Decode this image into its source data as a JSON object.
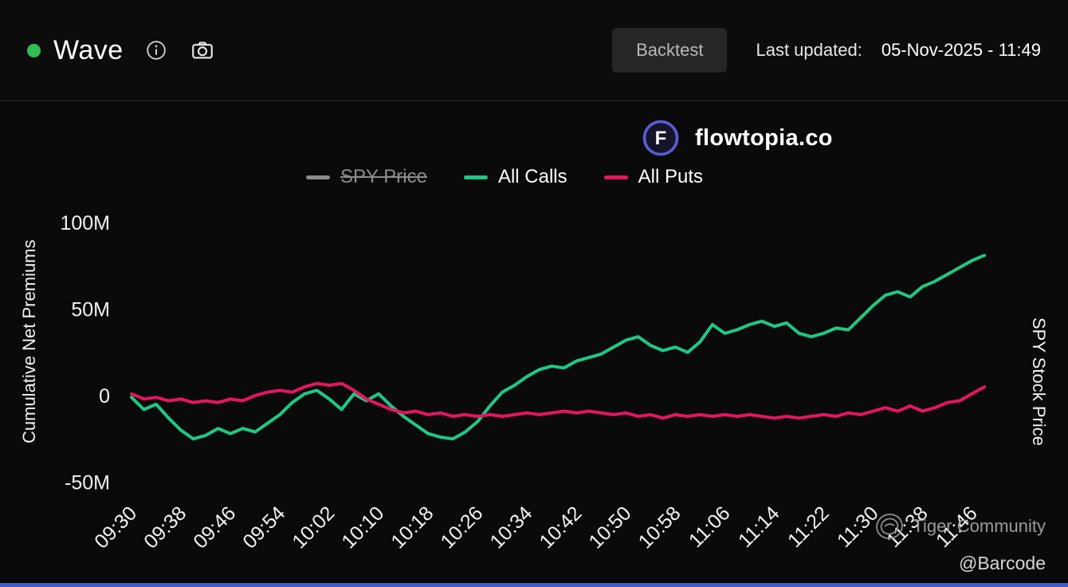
{
  "header": {
    "title": "Wave",
    "backtest_label": "Backtest",
    "last_updated_label": "Last updated:",
    "last_updated_value": "05-Nov-2025 - 11:49"
  },
  "branding": {
    "logo_letter": "F",
    "logo_text": "flowtopia.co"
  },
  "watermark": {
    "community": "Tiger Community",
    "handle": "@Barcode"
  },
  "ui_colors": {
    "status_dot": "#2fbe54",
    "background": "#0a0a0a",
    "header_bg": "#0c0c0c",
    "bottom_bar": "#3e5fcb",
    "logo_ring": "#5b5bd6",
    "tick_text": "#f2f2f2"
  },
  "chart_data": {
    "type": "line",
    "ylabel_left": "Cumulative Net Premiums",
    "ylabel_right": "SPY Stock Price",
    "ylim": [
      -65,
      115
    ],
    "x_domain_minutes": [
      0,
      138
    ],
    "x_start_time": "09:30",
    "grid": false,
    "legend_position": "top-center",
    "y_ticks": [
      {
        "label": "100M",
        "value": 100
      },
      {
        "label": "50M",
        "value": 50
      },
      {
        "label": "0",
        "value": 0
      },
      {
        "label": "-50M",
        "value": -50
      }
    ],
    "x_ticks": [
      {
        "label": "09:30",
        "minute": 0
      },
      {
        "label": "09:38",
        "minute": 8
      },
      {
        "label": "09:46",
        "minute": 16
      },
      {
        "label": "09:54",
        "minute": 24
      },
      {
        "label": "10:02",
        "minute": 32
      },
      {
        "label": "10:10",
        "minute": 40
      },
      {
        "label": "10:18",
        "minute": 48
      },
      {
        "label": "10:26",
        "minute": 56
      },
      {
        "label": "10:34",
        "minute": 64
      },
      {
        "label": "10:42",
        "minute": 72
      },
      {
        "label": "10:50",
        "minute": 80
      },
      {
        "label": "10:58",
        "minute": 88
      },
      {
        "label": "11:06",
        "minute": 96
      },
      {
        "label": "11:14",
        "minute": 104
      },
      {
        "label": "11:22",
        "minute": 112
      },
      {
        "label": "11:30",
        "minute": 120
      },
      {
        "label": "11:38",
        "minute": 128
      },
      {
        "label": "11:46",
        "minute": 136
      }
    ],
    "legend": [
      {
        "label": "SPY Price",
        "color": "#8c8c8c",
        "disabled": true
      },
      {
        "label": "All Calls",
        "color": "#1ec887",
        "disabled": false
      },
      {
        "label": "All Puts",
        "color": "#e61560",
        "disabled": false
      }
    ],
    "series": [
      {
        "name": "All Calls",
        "color": "#1ec887",
        "unit": "M",
        "points": [
          [
            0,
            -1
          ],
          [
            2,
            -8
          ],
          [
            4,
            -5
          ],
          [
            6,
            -13
          ],
          [
            8,
            -20
          ],
          [
            10,
            -25
          ],
          [
            12,
            -23
          ],
          [
            14,
            -19
          ],
          [
            16,
            -22
          ],
          [
            18,
            -19
          ],
          [
            20,
            -21
          ],
          [
            22,
            -16
          ],
          [
            24,
            -11
          ],
          [
            26,
            -4
          ],
          [
            28,
            1
          ],
          [
            30,
            3
          ],
          [
            32,
            -2
          ],
          [
            34,
            -8
          ],
          [
            36,
            1
          ],
          [
            38,
            -3
          ],
          [
            40,
            1
          ],
          [
            42,
            -6
          ],
          [
            44,
            -12
          ],
          [
            46,
            -17
          ],
          [
            48,
            -22
          ],
          [
            50,
            -24
          ],
          [
            52,
            -25
          ],
          [
            54,
            -21
          ],
          [
            56,
            -15
          ],
          [
            58,
            -6
          ],
          [
            60,
            2
          ],
          [
            62,
            6
          ],
          [
            64,
            11
          ],
          [
            66,
            15
          ],
          [
            68,
            17
          ],
          [
            70,
            16
          ],
          [
            72,
            20
          ],
          [
            74,
            22
          ],
          [
            76,
            24
          ],
          [
            78,
            28
          ],
          [
            80,
            32
          ],
          [
            82,
            34
          ],
          [
            84,
            29
          ],
          [
            86,
            26
          ],
          [
            88,
            28
          ],
          [
            90,
            25
          ],
          [
            92,
            31
          ],
          [
            94,
            41
          ],
          [
            96,
            36
          ],
          [
            98,
            38
          ],
          [
            100,
            41
          ],
          [
            102,
            43
          ],
          [
            104,
            40
          ],
          [
            106,
            42
          ],
          [
            108,
            36
          ],
          [
            110,
            34
          ],
          [
            112,
            36
          ],
          [
            114,
            39
          ],
          [
            116,
            38
          ],
          [
            118,
            45
          ],
          [
            120,
            52
          ],
          [
            122,
            58
          ],
          [
            124,
            60
          ],
          [
            126,
            57
          ],
          [
            128,
            63
          ],
          [
            130,
            66
          ],
          [
            132,
            70
          ],
          [
            134,
            74
          ],
          [
            136,
            78
          ],
          [
            138,
            81
          ]
        ]
      },
      {
        "name": "All Puts",
        "color": "#e61560",
        "unit": "M",
        "points": [
          [
            0,
            1
          ],
          [
            2,
            -2
          ],
          [
            4,
            -1
          ],
          [
            6,
            -3
          ],
          [
            8,
            -2
          ],
          [
            10,
            -4
          ],
          [
            12,
            -3
          ],
          [
            14,
            -4
          ],
          [
            16,
            -2
          ],
          [
            18,
            -3
          ],
          [
            20,
            0
          ],
          [
            22,
            2
          ],
          [
            24,
            3
          ],
          [
            26,
            2
          ],
          [
            28,
            5
          ],
          [
            30,
            7
          ],
          [
            32,
            6
          ],
          [
            34,
            7
          ],
          [
            36,
            3
          ],
          [
            38,
            -2
          ],
          [
            40,
            -5
          ],
          [
            42,
            -8
          ],
          [
            44,
            -10
          ],
          [
            46,
            -9
          ],
          [
            48,
            -11
          ],
          [
            50,
            -10
          ],
          [
            52,
            -12
          ],
          [
            54,
            -11
          ],
          [
            56,
            -12
          ],
          [
            58,
            -11
          ],
          [
            60,
            -12
          ],
          [
            62,
            -11
          ],
          [
            64,
            -10
          ],
          [
            66,
            -11
          ],
          [
            68,
            -10
          ],
          [
            70,
            -9
          ],
          [
            72,
            -10
          ],
          [
            74,
            -9
          ],
          [
            76,
            -10
          ],
          [
            78,
            -11
          ],
          [
            80,
            -10
          ],
          [
            82,
            -12
          ],
          [
            84,
            -11
          ],
          [
            86,
            -13
          ],
          [
            88,
            -11
          ],
          [
            90,
            -12
          ],
          [
            92,
            -11
          ],
          [
            94,
            -12
          ],
          [
            96,
            -11
          ],
          [
            98,
            -12
          ],
          [
            100,
            -11
          ],
          [
            102,
            -12
          ],
          [
            104,
            -13
          ],
          [
            106,
            -12
          ],
          [
            108,
            -13
          ],
          [
            110,
            -12
          ],
          [
            112,
            -11
          ],
          [
            114,
            -12
          ],
          [
            116,
            -10
          ],
          [
            118,
            -11
          ],
          [
            120,
            -9
          ],
          [
            122,
            -7
          ],
          [
            124,
            -9
          ],
          [
            126,
            -6
          ],
          [
            128,
            -9
          ],
          [
            130,
            -7
          ],
          [
            132,
            -4
          ],
          [
            134,
            -3
          ],
          [
            136,
            1
          ],
          [
            138,
            5
          ]
        ]
      }
    ]
  }
}
